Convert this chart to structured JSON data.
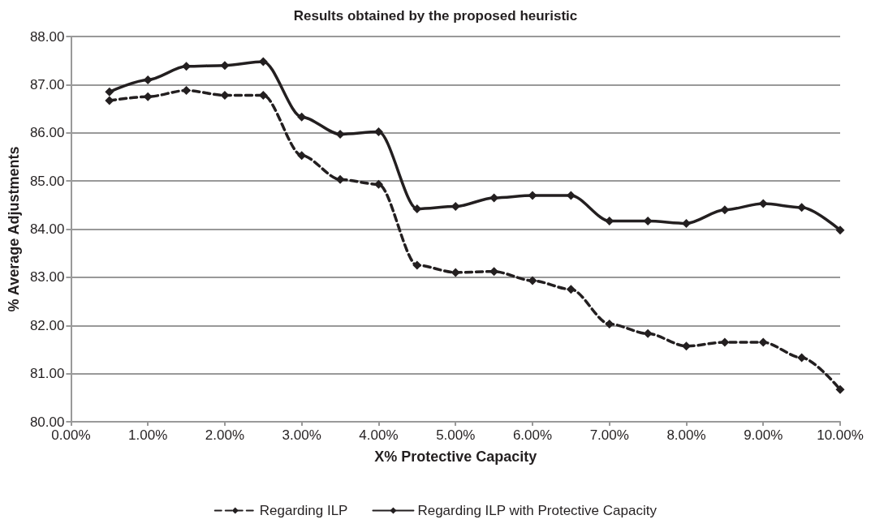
{
  "chart_data": {
    "type": "line",
    "title": "Results obtained by the proposed heuristic",
    "xlabel": "X% Protective Capacity",
    "ylabel": "% Average Adjustments",
    "x": [
      0.5,
      1,
      1.5,
      2,
      2.5,
      3,
      3.5,
      4,
      4.5,
      5,
      5.5,
      6,
      6.5,
      7,
      7.5,
      8,
      8.5,
      9,
      9.5,
      10
    ],
    "series": [
      {
        "name": "Regarding ILP",
        "color": "#231f20",
        "line_style": "dashed",
        "values": [
          86.67,
          86.75,
          86.88,
          86.78,
          86.78,
          85.53,
          85.03,
          84.93,
          83.25,
          83.1,
          83.12,
          82.93,
          82.75,
          82.03,
          81.83,
          81.57,
          81.65,
          81.65,
          81.33,
          80.67
        ]
      },
      {
        "name": "Regarding ILP with Protective Capacity",
        "color": "#231f20",
        "line_style": "solid",
        "values": [
          86.85,
          87.1,
          87.38,
          87.4,
          87.48,
          86.33,
          85.97,
          86.02,
          84.42,
          84.47,
          84.65,
          84.7,
          84.7,
          84.17,
          84.17,
          84.12,
          84.4,
          84.53,
          84.45,
          83.98
        ]
      }
    ],
    "xlim": [
      0,
      10
    ],
    "xticks": [
      {
        "value": 0,
        "label": "0.00%"
      },
      {
        "value": 1,
        "label": "1.00%"
      },
      {
        "value": 2,
        "label": "2.00%"
      },
      {
        "value": 3,
        "label": "3.00%"
      },
      {
        "value": 4,
        "label": "4.00%"
      },
      {
        "value": 5,
        "label": "5.00%"
      },
      {
        "value": 6,
        "label": "6.00%"
      },
      {
        "value": 7,
        "label": "7.00%"
      },
      {
        "value": 8,
        "label": "8.00%"
      },
      {
        "value": 9,
        "label": "9.00%"
      },
      {
        "value": 10,
        "label": "10.00%"
      }
    ],
    "ylim": [
      80,
      88
    ],
    "yticks": [
      {
        "value": 80,
        "label": "80.00"
      },
      {
        "value": 81,
        "label": "81.00"
      },
      {
        "value": 82,
        "label": "82.00"
      },
      {
        "value": 83,
        "label": "83.00"
      },
      {
        "value": 84,
        "label": "84.00"
      },
      {
        "value": 85,
        "label": "85.00"
      },
      {
        "value": 86,
        "label": "86.00"
      },
      {
        "value": 87,
        "label": "87.00"
      },
      {
        "value": 88,
        "label": "88.00"
      }
    ],
    "grid": "y",
    "legend": "bottom",
    "marker": "diamond"
  }
}
